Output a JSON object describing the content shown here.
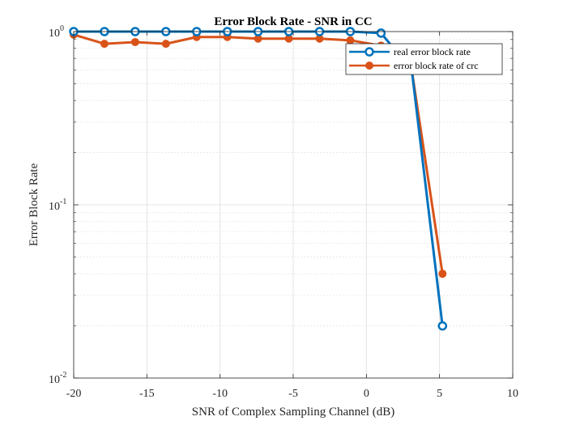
{
  "chart_data": {
    "type": "line",
    "title": "Error Block Rate - SNR in CC",
    "xlabel": "SNR of Complex Sampling Channel (dB)",
    "ylabel": "Error Block Rate",
    "xlim": [
      -20,
      10
    ],
    "ylim": [
      0.01,
      1
    ],
    "yscale": "log",
    "grid": true,
    "legend_position": "top-right",
    "xticks": [
      -20,
      -15,
      -10,
      -5,
      0,
      5,
      10
    ],
    "yticks": [
      {
        "value": 1,
        "base": "10",
        "exp": "0"
      },
      {
        "value": 0.1,
        "base": "10",
        "exp": "-1"
      },
      {
        "value": 0.01,
        "base": "10",
        "exp": "-2"
      }
    ],
    "series": [
      {
        "name": "real error block rate",
        "color": "#0072BD",
        "marker": "circle-open",
        "x": [
          -20,
          -17.9,
          -15.8,
          -13.7,
          -11.6,
          -9.5,
          -7.4,
          -5.3,
          -3.2,
          -1.1,
          1.0,
          3.1,
          5.2
        ],
        "y": [
          1.0,
          1.0,
          1.0,
          1.0,
          1.0,
          1.0,
          1.0,
          1.0,
          1.0,
          1.0,
          0.98,
          0.6,
          0.02
        ]
      },
      {
        "name": "error block rate of crc",
        "color": "#D95319",
        "marker": "circle-filled",
        "x": [
          -20,
          -17.9,
          -15.8,
          -13.7,
          -11.6,
          -9.5,
          -7.4,
          -5.3,
          -3.2,
          -1.1,
          1.0,
          3.1,
          5.2
        ],
        "y": [
          0.96,
          0.85,
          0.87,
          0.85,
          0.93,
          0.93,
          0.91,
          0.91,
          0.91,
          0.89,
          0.83,
          0.6,
          0.04
        ]
      }
    ]
  }
}
